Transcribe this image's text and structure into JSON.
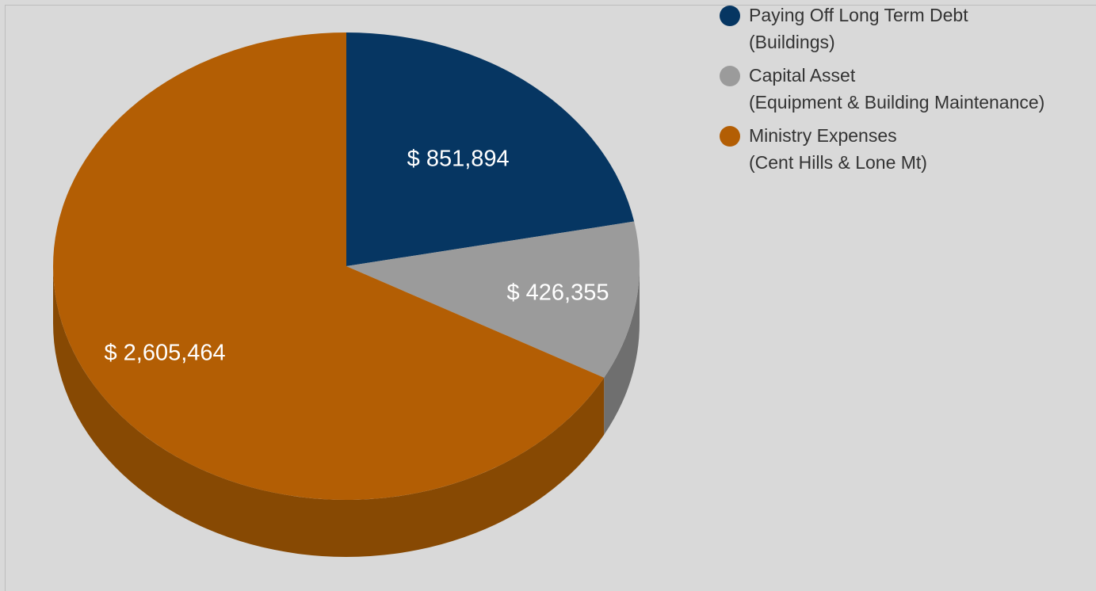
{
  "chart_data": {
    "type": "pie",
    "style": "3d",
    "categories": [
      "Paying Off Long Term Debt (Buildings)",
      "Capital Asset (Equipment & Building Maintenance)",
      "Ministry Expenses (Cent Hills & Lone Mt)"
    ],
    "values": [
      851894,
      426355,
      2605464
    ],
    "data_labels": [
      "$ 851,894",
      "$ 426,355",
      "$ 2,605,464"
    ],
    "colors": [
      "#063662",
      "#9b9b9b",
      "#b35e04"
    ],
    "side_colors": [
      "#052848",
      "#6f6f6f",
      "#874903"
    ],
    "legend_position": "top-right",
    "legend": [
      {
        "line1": "Paying Off Long Term Debt",
        "line2": "(Buildings)",
        "color": "#063662"
      },
      {
        "line1": "Capital Asset",
        "line2": "(Equipment & Building Maintenance)",
        "color": "#9b9b9b"
      },
      {
        "line1": "Ministry Expenses",
        "line2": "(Cent Hills & Lone Mt)",
        "color": "#b35e04"
      }
    ]
  }
}
